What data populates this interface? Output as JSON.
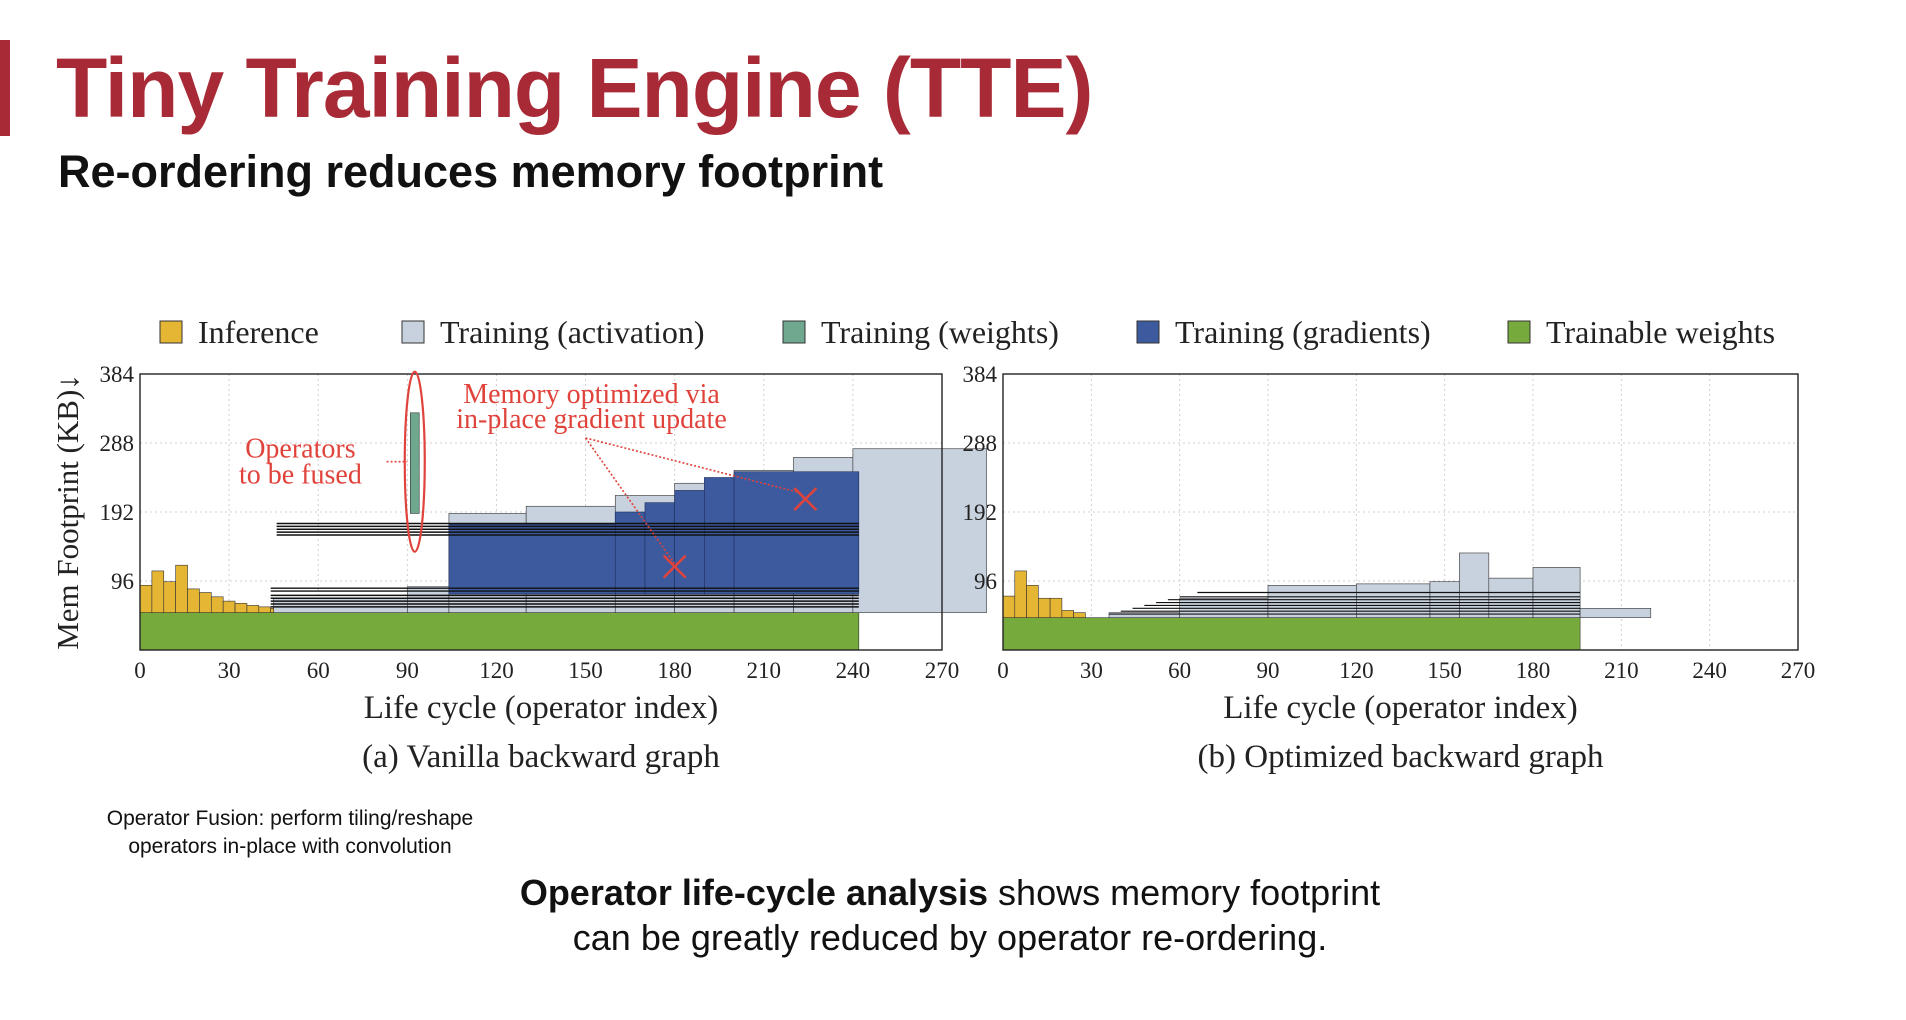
{
  "slide": {
    "title": "Tiny Training Engine (TTE)",
    "subtitle": "Re-ordering reduces memory footprint",
    "accent_color": "#a82a36",
    "note_line1": "Operator Fusion: perform tiling/reshape",
    "note_line2": "operators in-place with convolution",
    "summary_bold": "Operator life-cycle analysis",
    "summary_rest": " shows memory footprint",
    "summary_line2": "can be greatly reduced by operator re-ordering."
  },
  "legend": [
    {
      "label": "Inference",
      "color": "#e5b534"
    },
    {
      "label": "Training (activation)",
      "color": "#c8d2df"
    },
    {
      "label": "Training (weights)",
      "color": "#6fa88e"
    },
    {
      "label": "Training (gradients)",
      "color": "#3d5a9e"
    },
    {
      "label": "Trainable weights",
      "color": "#76aa3c"
    }
  ],
  "chart_data": [
    {
      "type": "area",
      "title": "(a) Vanilla backward graph",
      "xlabel": "Life cycle (operator index)",
      "ylabel": "Mem Footprint (KB)↓",
      "xlim": [
        0,
        270
      ],
      "ylim": [
        0,
        384
      ],
      "xticks": [
        0,
        30,
        60,
        90,
        120,
        150,
        180,
        210,
        240,
        270
      ],
      "yticks": [
        96,
        192,
        288,
        384
      ],
      "grid": true,
      "annotations": {
        "fuse_line1": "Operators",
        "fuse_line2": "to be fused",
        "inplace_line1": "Memory optimized via",
        "inplace_line2": "in-place gradient update"
      },
      "series": [
        {
          "name": "Trainable weights",
          "x": [
            0,
            242
          ],
          "y": [
            52,
            52
          ]
        },
        {
          "name": "Inference",
          "x": [
            0,
            4,
            8,
            12,
            16,
            20,
            24,
            28,
            32,
            36,
            40,
            44
          ],
          "y": [
            90,
            110,
            95,
            118,
            85,
            80,
            74,
            68,
            65,
            62,
            60,
            58
          ]
        },
        {
          "name": "Training (activation)",
          "x": [
            45,
            90,
            104,
            130,
            160,
            180,
            200,
            220,
            240
          ],
          "y": [
            72,
            88,
            190,
            200,
            215,
            232,
            250,
            268,
            280
          ]
        },
        {
          "name": "Training (weights)",
          "x": [
            91,
            94
          ],
          "y": [
            190,
            330
          ]
        },
        {
          "name": "Training (gradients)",
          "x": [
            104,
            160,
            170,
            180,
            190,
            200,
            242
          ],
          "y": [
            175,
            192,
            205,
            222,
            240,
            248,
            255
          ]
        }
      ]
    },
    {
      "type": "area",
      "title": "(b) Optimized backward graph",
      "xlabel": "Life cycle (operator index)",
      "ylabel": "",
      "xlim": [
        0,
        270
      ],
      "ylim": [
        0,
        384
      ],
      "xticks": [
        0,
        30,
        60,
        90,
        120,
        150,
        180,
        210,
        240,
        270
      ],
      "yticks": [
        96,
        192,
        288,
        384
      ],
      "grid": true,
      "series": [
        {
          "name": "Trainable weights",
          "x": [
            0,
            196
          ],
          "y": [
            45,
            45
          ]
        },
        {
          "name": "Inference",
          "x": [
            0,
            4,
            8,
            12,
            16,
            20,
            24
          ],
          "y": [
            75,
            110,
            90,
            72,
            72,
            55,
            52
          ]
        },
        {
          "name": "Training (activation)",
          "x": [
            36,
            60,
            90,
            120,
            145,
            155,
            165,
            180,
            196
          ],
          "y": [
            52,
            72,
            90,
            92,
            95,
            135,
            100,
            115,
            58
          ]
        }
      ]
    }
  ]
}
